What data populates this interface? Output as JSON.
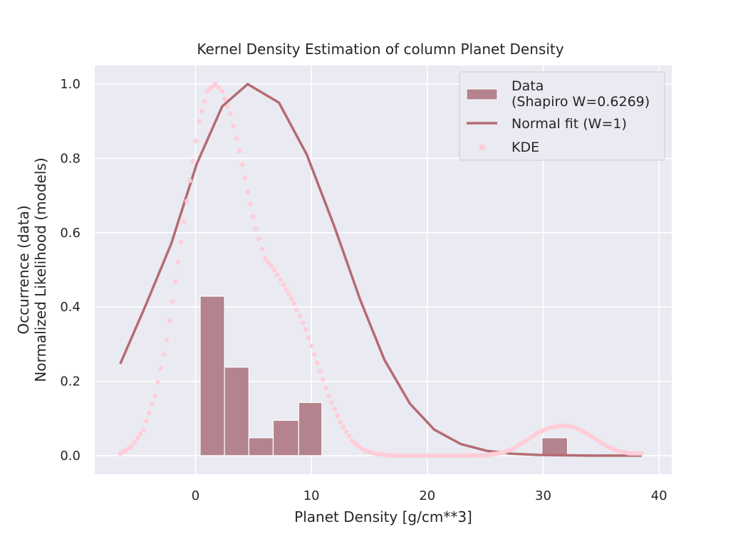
{
  "chart_data": {
    "type": "bar",
    "title": "Kernel Density Estimation of column Planet Density",
    "xlabel": "Planet Density [g/cm**3]",
    "ylabel_lines": [
      "Occurrence (data)",
      "Normalized Likelihood (models)"
    ],
    "xlim": [
      -8.7,
      41.1
    ],
    "ylim": [
      -0.05,
      1.05
    ],
    "xticks": [
      0,
      10,
      20,
      30,
      40
    ],
    "yticks": [
      0.0,
      0.2,
      0.4,
      0.6,
      0.8,
      1.0
    ],
    "xtick_labels": [
      "0",
      "10",
      "20",
      "30",
      "40"
    ],
    "ytick_labels": [
      "0.0",
      "0.2",
      "0.4",
      "0.6",
      "0.8",
      "1.0"
    ],
    "grid": true,
    "legend_position": "top-right",
    "colors": {
      "background": "#eaeaf2",
      "grid": "#ffffff",
      "histogram": "#b5838d",
      "normal_fit": "#b56b73",
      "kde": "#ffcdd8"
    },
    "histogram": {
      "legend_lines": [
        "Data",
        "(Shapiro W=0.6269)"
      ],
      "bins": [
        {
          "x0": 0.4,
          "x1": 2.5,
          "value": 0.429
        },
        {
          "x0": 2.5,
          "x1": 4.6,
          "value": 0.238
        },
        {
          "x0": 4.6,
          "x1": 6.7,
          "value": 0.048
        },
        {
          "x0": 6.7,
          "x1": 8.9,
          "value": 0.095
        },
        {
          "x0": 8.9,
          "x1": 10.9,
          "value": 0.143
        },
        {
          "x0": 29.9,
          "x1": 32.1,
          "value": 0.048
        }
      ]
    },
    "normal_fit": {
      "legend": "Normal fit (W=1)",
      "x": [
        -6.5,
        -4.3,
        -2.1,
        0.1,
        2.3,
        4.5,
        7.2,
        9.6,
        12.0,
        14.2,
        16.3,
        18.5,
        20.6,
        22.9,
        25.1,
        27.3,
        29.5,
        31.7,
        34.0,
        36.2,
        38.5
      ],
      "y": [
        0.247,
        0.405,
        0.57,
        0.785,
        0.94,
        1.0,
        0.95,
        0.81,
        0.615,
        0.42,
        0.258,
        0.14,
        0.07,
        0.031,
        0.013,
        0.005,
        0.002,
        0.001,
        0.0,
        0.0,
        0.0
      ]
    },
    "kde": {
      "legend": "KDE",
      "x": [
        -6.5,
        -5.5,
        -4.5,
        -3.5,
        -2.5,
        -1.5,
        -0.5,
        0.3,
        1.0,
        1.7,
        2.3,
        3.0,
        3.8,
        4.5,
        5.2,
        6.0,
        6.8,
        7.6,
        8.5,
        9.5,
        10.5,
        11.5,
        12.5,
        13.5,
        14.5,
        15.5,
        17.0,
        19.0,
        21.0,
        23.0,
        25.0,
        26.5,
        27.5,
        28.5,
        29.5,
        30.5,
        31.5,
        32.0,
        32.5,
        33.5,
        34.5,
        35.5,
        36.5,
        37.5,
        38.5
      ],
      "y": [
        0.005,
        0.025,
        0.07,
        0.16,
        0.31,
        0.52,
        0.74,
        0.9,
        0.98,
        1.0,
        0.98,
        0.92,
        0.82,
        0.71,
        0.61,
        0.53,
        0.5,
        0.46,
        0.41,
        0.34,
        0.25,
        0.16,
        0.09,
        0.04,
        0.015,
        0.005,
        0.0,
        0.0,
        0.0,
        0.0,
        0.001,
        0.008,
        0.02,
        0.04,
        0.06,
        0.075,
        0.08,
        0.08,
        0.078,
        0.065,
        0.045,
        0.025,
        0.012,
        0.006,
        0.006
      ]
    }
  }
}
